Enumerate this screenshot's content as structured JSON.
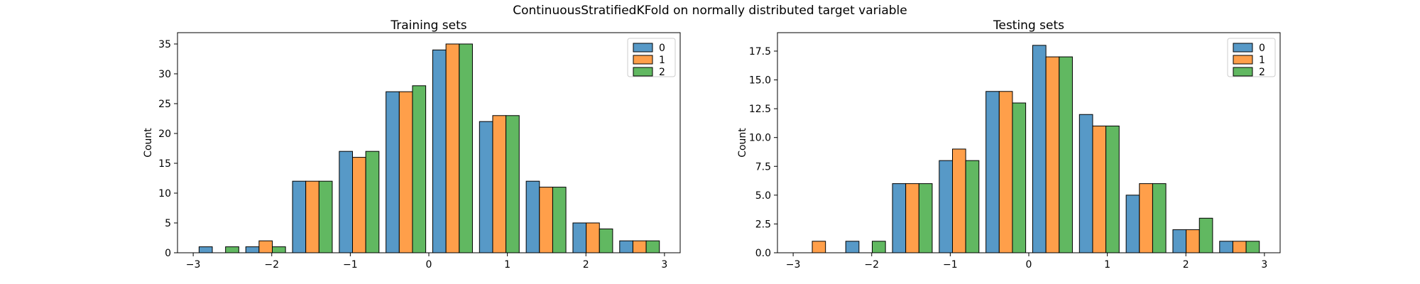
{
  "suptitle": "ContinuousStratifiedKFold on normally distributed target variable",
  "palette": {
    "fold_colors": [
      "#5799c7",
      "#ff9f4a",
      "#61b861"
    ],
    "bar_edge": "#000000",
    "legend_border": "#cccccc",
    "legend_background": "#ffffff",
    "axes_color": "#000000",
    "text_color": "#000000",
    "background": "#ffffff"
  },
  "chart_data": [
    {
      "id": "training",
      "type": "bar",
      "subtype": "grouped-histogram",
      "title": "Training sets",
      "xlabel": "",
      "ylabel": "Count",
      "xlim": [
        -3.2,
        3.2
      ],
      "ylim": [
        0,
        36.9
      ],
      "xtick_values": [
        -3,
        -2,
        -1,
        0,
        1,
        2,
        3
      ],
      "xtick_labels": [
        "−3",
        "−2",
        "−1",
        "0",
        "1",
        "2",
        "3"
      ],
      "ytick_values": [
        0,
        5,
        10,
        15,
        20,
        25,
        30,
        35
      ],
      "ytick_labels": [
        "0",
        "5",
        "10",
        "15",
        "20",
        "25",
        "30",
        "35"
      ],
      "bin_start": -2.97,
      "bin_width": 0.595,
      "grid": false,
      "legend_position": "upper right",
      "legend_labels": [
        "0",
        "1",
        "2"
      ],
      "series": [
        {
          "name": "0",
          "values": [
            1,
            1,
            12,
            17,
            27,
            34,
            22,
            12,
            5,
            2
          ]
        },
        {
          "name": "1",
          "values": [
            0,
            2,
            12,
            16,
            27,
            35,
            23,
            11,
            5,
            2
          ]
        },
        {
          "name": "2",
          "values": [
            1,
            1,
            12,
            17,
            28,
            35,
            23,
            11,
            4,
            2
          ]
        }
      ]
    },
    {
      "id": "testing",
      "type": "bar",
      "subtype": "grouped-histogram",
      "title": "Testing sets",
      "xlabel": "",
      "ylabel": "Count",
      "xlim": [
        -3.2,
        3.2
      ],
      "ylim": [
        0,
        19.1
      ],
      "xtick_values": [
        -3,
        -2,
        -1,
        0,
        1,
        2,
        3
      ],
      "xtick_labels": [
        "−3",
        "−2",
        "−1",
        "0",
        "1",
        "2",
        "3"
      ],
      "ytick_values": [
        0,
        2.5,
        5,
        7.5,
        10,
        12.5,
        15,
        17.5
      ],
      "ytick_labels": [
        "0.0",
        "2.5",
        "5.0",
        "7.5",
        "10.0",
        "12.5",
        "15.0",
        "17.5"
      ],
      "bin_start": -2.97,
      "bin_width": 0.595,
      "grid": false,
      "legend_position": "upper right",
      "legend_labels": [
        "0",
        "1",
        "2"
      ],
      "series": [
        {
          "name": "0",
          "values": [
            0,
            1,
            6,
            8,
            14,
            18,
            12,
            5,
            2,
            1
          ]
        },
        {
          "name": "1",
          "values": [
            1,
            0,
            6,
            9,
            14,
            17,
            11,
            6,
            2,
            1
          ]
        },
        {
          "name": "2",
          "values": [
            0,
            1,
            6,
            8,
            13,
            17,
            11,
            6,
            3,
            1
          ]
        }
      ]
    }
  ]
}
